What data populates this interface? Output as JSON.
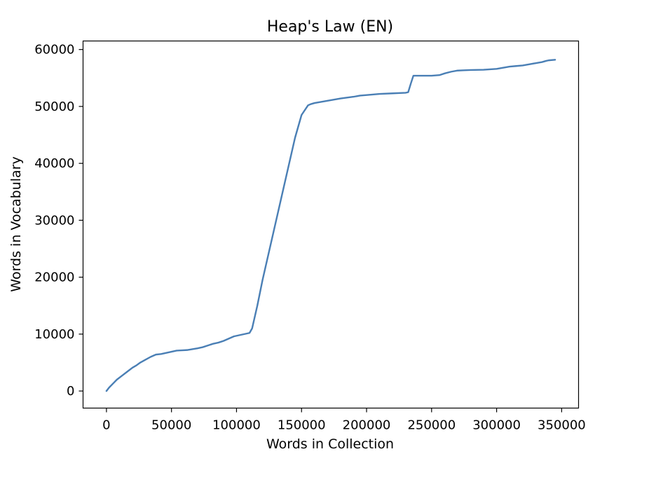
{
  "chart_data": {
    "type": "line",
    "title": "Heap's Law (EN)",
    "xlabel": "Words in Collection",
    "ylabel": "Words in Vocabulary",
    "xlim": [
      -18000,
      363000
    ],
    "ylim": [
      -3000,
      61500
    ],
    "xticks": [
      0,
      50000,
      100000,
      150000,
      200000,
      250000,
      300000,
      350000
    ],
    "yticks": [
      0,
      10000,
      20000,
      30000,
      40000,
      50000,
      60000
    ],
    "grid": false,
    "legend": "none",
    "line_color": "#4a7fb5",
    "series": [
      {
        "x": [
          0,
          2000,
          5000,
          8000,
          12000,
          16000,
          20000,
          23000,
          26000,
          30000,
          34000,
          38000,
          42000,
          46000,
          50000,
          54000,
          58000,
          62000,
          66000,
          70000,
          74000,
          78000,
          82000,
          86000,
          90000,
          94000,
          98000,
          102000,
          106000,
          110000,
          112000,
          116000,
          120000,
          125000,
          130000,
          135000,
          140000,
          145000,
          150000,
          155000,
          157000,
          160000,
          165000,
          170000,
          175000,
          180000,
          190000,
          195000,
          200000,
          210000,
          220000,
          230000,
          232000,
          234000,
          236000,
          240000,
          250000,
          256000,
          260000,
          265000,
          270000,
          275000,
          280000,
          290000,
          300000,
          305000,
          310000,
          315000,
          320000,
          325000,
          330000,
          335000,
          338000,
          340000,
          345000
        ],
        "y": [
          0,
          600,
          1300,
          2000,
          2700,
          3400,
          4100,
          4500,
          5000,
          5500,
          6000,
          6400,
          6500,
          6700,
          6900,
          7100,
          7150,
          7200,
          7350,
          7500,
          7700,
          8000,
          8300,
          8500,
          8800,
          9200,
          9600,
          9800,
          10000,
          10200,
          11000,
          15000,
          19500,
          24500,
          29500,
          34500,
          39500,
          44500,
          48500,
          50200,
          50400,
          50600,
          50800,
          51000,
          51200,
          51400,
          51700,
          51900,
          52000,
          52200,
          52300,
          52400,
          52500,
          54000,
          55400,
          55400,
          55400,
          55500,
          55800,
          56100,
          56300,
          56350,
          56400,
          56450,
          56600,
          56800,
          57000,
          57100,
          57200,
          57400,
          57600,
          57800,
          58000,
          58100,
          58200
        ]
      }
    ]
  }
}
